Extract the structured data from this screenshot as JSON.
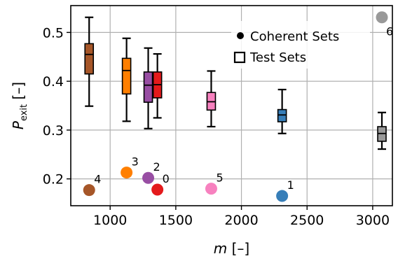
{
  "chart_data": {
    "type": "scatter",
    "xlabel": "m [–]",
    "ylabel": "P_exit [–]",
    "ylabel_main": "P",
    "ylabel_sub": "exit",
    "ylabel_unit": " [–]",
    "xlim": [
      700,
      3150
    ],
    "ylim": [
      0.145,
      0.555
    ],
    "xticks": [
      1000,
      1500,
      2000,
      2500,
      3000
    ],
    "yticks": [
      0.2,
      0.3,
      0.4,
      0.5
    ],
    "xtick_labels": [
      "1000",
      "1500",
      "2000",
      "2500",
      "3000"
    ],
    "ytick_labels": [
      "0.2",
      "0.3",
      "0.4",
      "0.5"
    ],
    "grid": true,
    "legend_position": "top-right",
    "legend": [
      {
        "marker": "filled-circle",
        "label": "Coherent Sets"
      },
      {
        "marker": "open-square",
        "label": "Test Sets"
      }
    ],
    "coherent_sets": [
      {
        "label": "4",
        "m": 840,
        "p": 0.177,
        "color": "#a65628"
      },
      {
        "label": "3",
        "m": 1125,
        "p": 0.213,
        "color": "#ff7f00"
      },
      {
        "label": "2",
        "m": 1290,
        "p": 0.202,
        "color": "#984ea3"
      },
      {
        "label": "0",
        "m": 1360,
        "p": 0.178,
        "color": "#e41a1c"
      },
      {
        "label": "5",
        "m": 1770,
        "p": 0.18,
        "color": "#f781bf"
      },
      {
        "label": "1",
        "m": 2310,
        "p": 0.165,
        "color": "#377eb8"
      },
      {
        "label": "6",
        "m": 3070,
        "p": 0.531,
        "color": "#999999"
      }
    ],
    "test_sets": [
      {
        "m": 840,
        "color": "#a65628",
        "min": 0.349,
        "q1": 0.415,
        "median": 0.455,
        "q3": 0.477,
        "max": 0.531
      },
      {
        "m": 1125,
        "color": "#ff7f00",
        "min": 0.318,
        "q1": 0.374,
        "median": 0.422,
        "q3": 0.447,
        "max": 0.488
      },
      {
        "m": 1290,
        "color": "#984ea3",
        "min": 0.303,
        "q1": 0.357,
        "median": 0.392,
        "q3": 0.419,
        "max": 0.468
      },
      {
        "m": 1360,
        "color": "#e41a1c",
        "min": 0.325,
        "q1": 0.366,
        "median": 0.393,
        "q3": 0.419,
        "max": 0.456
      },
      {
        "m": 1770,
        "color": "#f781bf",
        "min": 0.307,
        "q1": 0.341,
        "median": 0.358,
        "q3": 0.377,
        "max": 0.421
      },
      {
        "m": 2310,
        "color": "#377eb8",
        "min": 0.293,
        "q1": 0.317,
        "median": 0.331,
        "q3": 0.342,
        "max": 0.383
      },
      {
        "m": 3070,
        "color": "#999999",
        "min": 0.261,
        "q1": 0.277,
        "median": 0.293,
        "q3": 0.307,
        "max": 0.336
      }
    ]
  }
}
